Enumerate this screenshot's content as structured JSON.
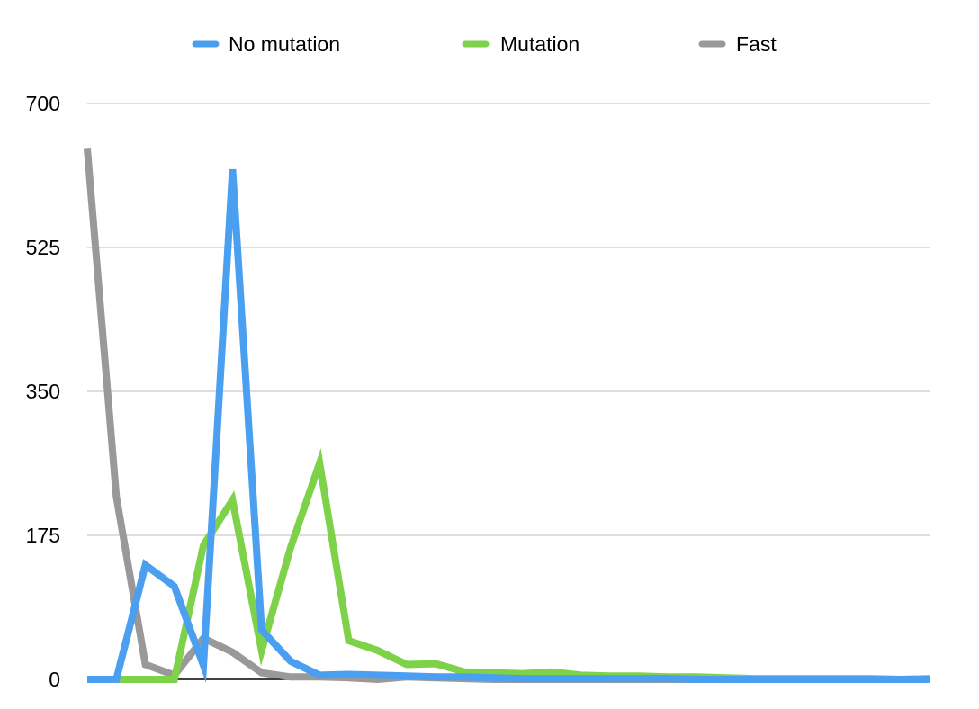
{
  "chart_data": {
    "type": "line",
    "title": "",
    "xlabel": "",
    "ylabel": "",
    "ylim": [
      0,
      700
    ],
    "yticks": [
      0,
      175,
      350,
      525,
      700
    ],
    "grid": true,
    "legend_position": "top",
    "series": [
      {
        "name": "No mutation",
        "color": "#4a9ff0",
        "values": [
          0,
          0,
          139,
          113,
          17,
          620,
          60,
          22,
          5,
          6,
          5,
          4,
          3,
          3,
          2,
          1,
          1,
          1,
          1,
          1,
          1,
          0,
          0,
          0,
          0,
          0,
          0,
          0,
          0,
          0
        ]
      },
      {
        "name": "Mutation",
        "color": "#7ed24a",
        "values": [
          0,
          0,
          0,
          0,
          163,
          218,
          35,
          160,
          263,
          47,
          35,
          18,
          19,
          9,
          8,
          7,
          9,
          5,
          4,
          4,
          3,
          3,
          2,
          1,
          1,
          1,
          1,
          1,
          0,
          1
        ]
      },
      {
        "name": "Fast",
        "color": "#999999",
        "values": [
          645,
          222,
          18,
          5,
          50,
          33,
          8,
          3,
          3,
          2,
          0,
          3,
          2,
          1,
          0,
          0,
          0,
          0,
          0,
          0,
          0,
          0,
          0,
          0,
          0,
          0,
          0,
          0,
          0,
          0
        ]
      }
    ]
  }
}
